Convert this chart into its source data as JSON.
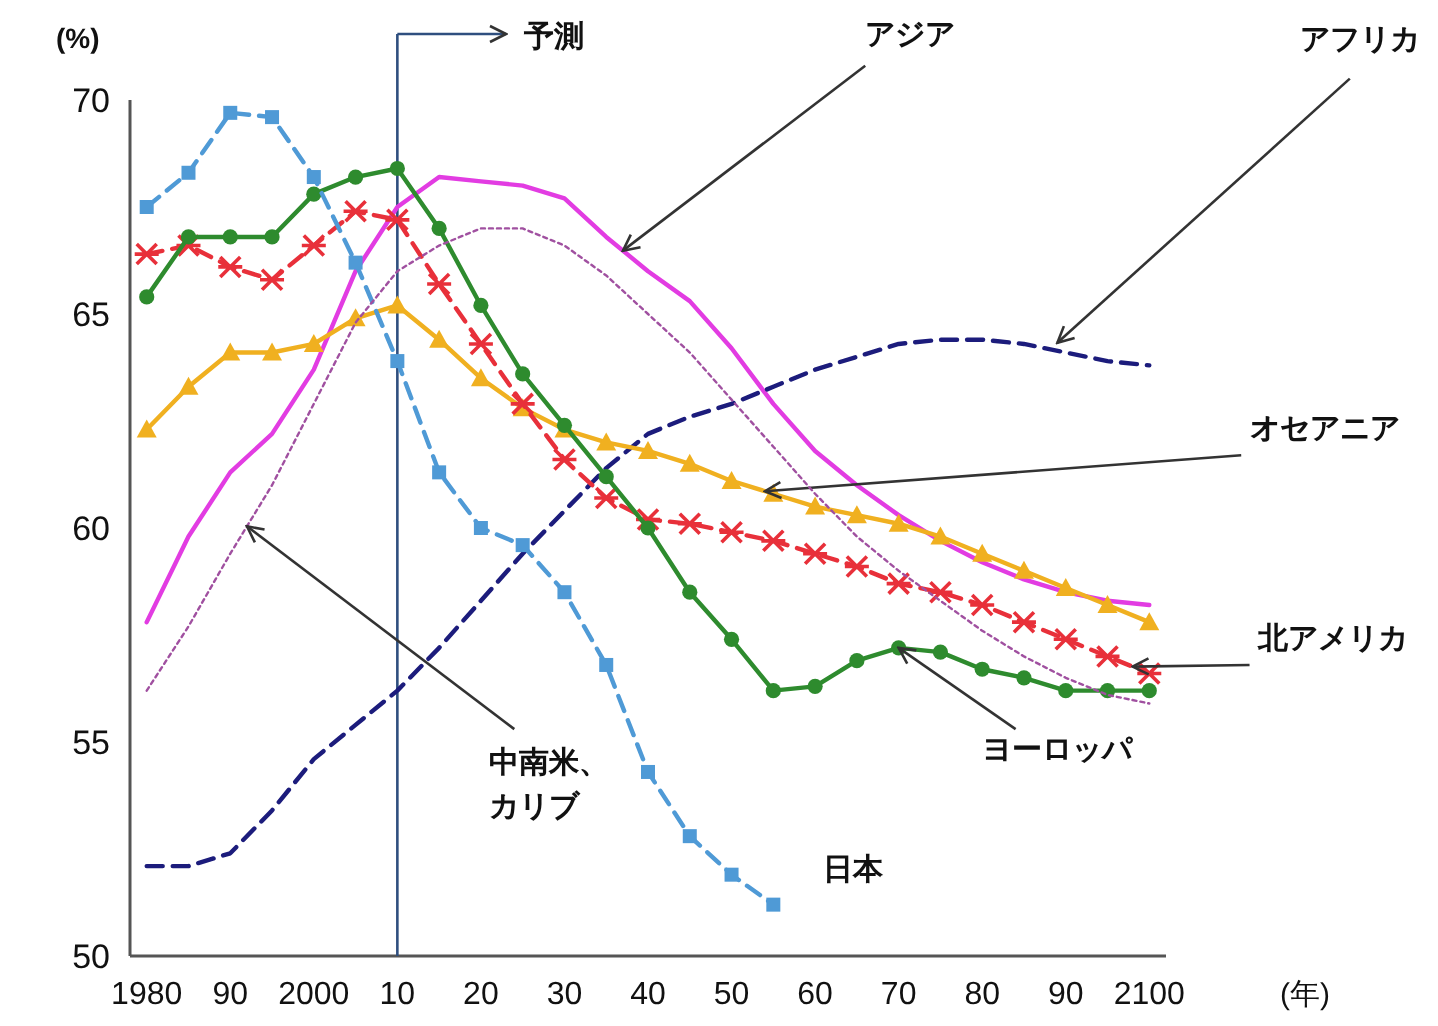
{
  "chart_data": {
    "type": "line",
    "ylabel": "(%)",
    "xlabel": "(年)",
    "x": [
      1980,
      1985,
      1990,
      1995,
      2000,
      2005,
      2010,
      2015,
      2020,
      2025,
      2030,
      2035,
      2040,
      2045,
      2050,
      2055,
      2060,
      2065,
      2070,
      2075,
      2080,
      2085,
      2090,
      2095,
      2100
    ],
    "xlim": [
      1978,
      2102
    ],
    "ylim": [
      50,
      70
    ],
    "xticks": [
      1980,
      {
        "value": 1990,
        "label": "90"
      },
      2000,
      {
        "value": 2010,
        "label": "10"
      },
      {
        "value": 2020,
        "label": "20"
      },
      {
        "value": 2030,
        "label": "30"
      },
      {
        "value": 2040,
        "label": "40"
      },
      {
        "value": 2050,
        "label": "50"
      },
      {
        "value": 2060,
        "label": "60"
      },
      {
        "value": 2070,
        "label": "70"
      },
      {
        "value": 2080,
        "label": "80"
      },
      {
        "value": 2090,
        "label": "90"
      },
      2100
    ],
    "yticks": [
      50,
      55,
      60,
      65,
      70
    ],
    "grid": false,
    "legend": false,
    "ref_lines": [
      {
        "axis": "x",
        "value": 2010,
        "label": "予測",
        "color": "#2f4f7f"
      }
    ],
    "series": [
      {
        "name": "アジア",
        "color": "#e23ce2",
        "marker": "none",
        "line_style": "solid",
        "values": [
          57.8,
          59.8,
          61.3,
          62.2,
          63.7,
          66.0,
          67.5,
          68.2,
          68.1,
          68.0,
          67.7,
          66.8,
          66.0,
          65.3,
          64.2,
          62.9,
          61.8,
          61.0,
          60.3,
          59.7,
          59.2,
          58.8,
          58.5,
          58.3,
          58.2
        ]
      },
      {
        "name": "アフリカ",
        "color": "#1c1c7c",
        "marker": "none",
        "line_style": "dashed",
        "values": [
          52.1,
          52.1,
          52.4,
          53.4,
          54.6,
          55.4,
          56.2,
          57.2,
          58.3,
          59.4,
          60.4,
          61.4,
          62.2,
          62.6,
          62.9,
          63.3,
          63.7,
          64.0,
          64.3,
          64.4,
          64.4,
          64.3,
          64.1,
          63.9,
          63.8
        ]
      },
      {
        "name": "オセアニア",
        "color": "#f0b020",
        "marker": "triangle",
        "line_style": "solid",
        "values": [
          62.3,
          63.3,
          64.1,
          64.1,
          64.3,
          64.9,
          65.2,
          64.4,
          63.5,
          62.8,
          62.3,
          62.0,
          61.8,
          61.5,
          61.1,
          60.8,
          60.5,
          60.3,
          60.1,
          59.8,
          59.4,
          59.0,
          58.6,
          58.2,
          57.8
        ]
      },
      {
        "name": "北アメリカ",
        "color": "#e8303a",
        "marker": "cross",
        "line_style": "dashed",
        "values": [
          66.4,
          66.6,
          66.1,
          65.8,
          66.6,
          67.4,
          67.2,
          65.7,
          64.3,
          62.9,
          61.6,
          60.7,
          60.2,
          60.1,
          59.9,
          59.7,
          59.4,
          59.1,
          58.7,
          58.5,
          58.2,
          57.8,
          57.4,
          57.0,
          56.6
        ]
      },
      {
        "name": "ヨーロッパ",
        "color": "#2e8b2e",
        "marker": "circle",
        "line_style": "solid",
        "values": [
          65.4,
          66.8,
          66.8,
          66.8,
          67.8,
          68.2,
          68.4,
          67.0,
          65.2,
          63.6,
          62.4,
          61.2,
          60.0,
          58.5,
          57.4,
          56.2,
          56.3,
          56.9,
          57.2,
          57.1,
          56.7,
          56.5,
          56.2,
          56.2,
          56.2
        ]
      },
      {
        "name": "日本",
        "color": "#4f9ad6",
        "marker": "square",
        "line_style": "dashed",
        "values": [
          67.5,
          68.3,
          69.7,
          69.6,
          68.2,
          66.2,
          63.9,
          61.3,
          60.0,
          59.6,
          58.5,
          56.8,
          54.3,
          52.8,
          51.9,
          51.2,
          null,
          null,
          null,
          null,
          null,
          null,
          null,
          null,
          null
        ]
      },
      {
        "name": "中南米、カリブ",
        "color": "#a050a0",
        "marker": "none",
        "line_style": "dotted",
        "values": [
          56.2,
          57.7,
          59.4,
          61.0,
          62.9,
          64.8,
          66.0,
          66.6,
          67.0,
          67.0,
          66.6,
          65.9,
          65.0,
          64.1,
          63.0,
          61.9,
          60.8,
          59.8,
          59.0,
          58.3,
          57.6,
          57.0,
          56.5,
          56.1,
          55.9
        ]
      }
    ]
  }
}
